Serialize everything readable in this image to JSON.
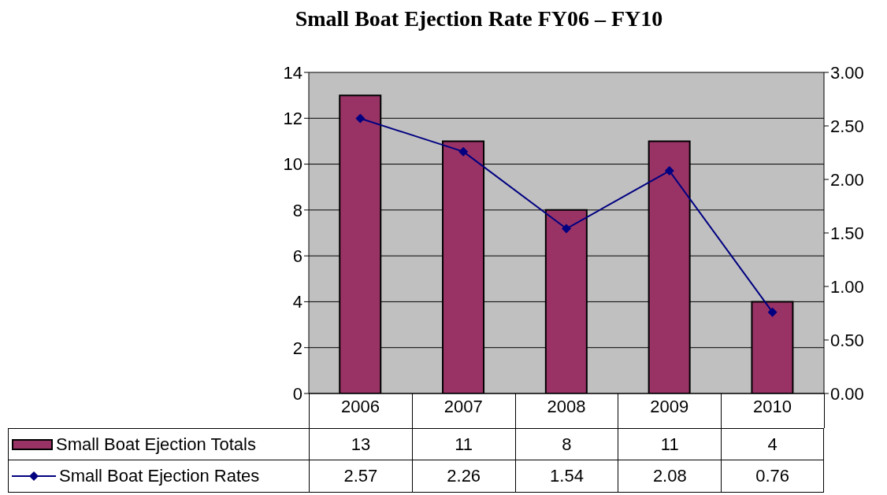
{
  "chart_data": {
    "type": "bar",
    "title": "Small Boat Ejection Rate FY06 – FY10",
    "categories": [
      "2006",
      "2007",
      "2008",
      "2009",
      "2010"
    ],
    "series": [
      {
        "name": "Small Boat Ejection Totals",
        "color": "#993366",
        "values": [
          13,
          11,
          8,
          11,
          4
        ]
      },
      {
        "name": "Small Boat Ejection Rates",
        "type": "line",
        "axis": "y2",
        "color": "#000080",
        "marker": "diamond",
        "values": [
          2.57,
          2.26,
          1.54,
          2.08,
          0.76
        ]
      }
    ],
    "ylim": [
      0,
      14
    ],
    "yticks": [
      0,
      2,
      4,
      6,
      8,
      10,
      12,
      14
    ],
    "y2lim": [
      0,
      3
    ],
    "y2ticks": [
      {
        "value": 0,
        "label": "0.00"
      },
      {
        "value": 0.5,
        "label": "0.50"
      },
      {
        "value": 1,
        "label": "1.00"
      },
      {
        "value": 1.5,
        "label": "1.50"
      },
      {
        "value": 2,
        "label": "2.00"
      },
      {
        "value": 2.5,
        "label": "2.50"
      },
      {
        "value": 3,
        "label": "3.00"
      }
    ],
    "grid": "y",
    "legend": "bottom",
    "data_labels": true
  }
}
